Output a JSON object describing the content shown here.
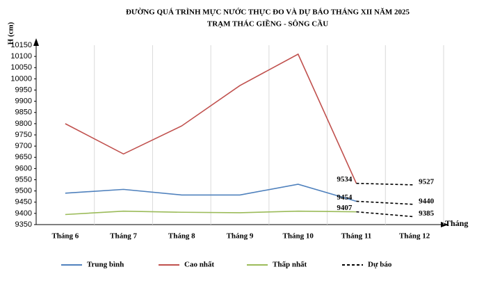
{
  "chart_data": {
    "type": "line",
    "title": "ĐƯỜNG QUÁ TRÌNH MỰC NƯỚC THỰC ĐO VÀ DỰ BÁO THÁNG XII NĂM 2025",
    "subtitle": "TRẠM THÁC GIỀNG  - SÔNG CẦU",
    "y_label": "H (cm)",
    "x_label": "Tháng",
    "categories": [
      "Tháng 6",
      "Tháng 7",
      "Tháng 8",
      "Tháng 9",
      "Tháng 10",
      "Tháng 11",
      "Tháng 12"
    ],
    "series": [
      {
        "name": "Trung bình",
        "color": "#4f81bd",
        "values": [
          9490,
          9507,
          9482,
          9482,
          9530,
          9454,
          null
        ]
      },
      {
        "name": "Cao nhất",
        "color": "#c0504d",
        "values": [
          9800,
          9665,
          9790,
          9970,
          10110,
          9534,
          null
        ]
      },
      {
        "name": "Thấp nhất",
        "color": "#9bbb59",
        "values": [
          9395,
          9410,
          9405,
          9403,
          9410,
          9407,
          null
        ]
      }
    ],
    "forecast": {
      "name": "Dự báo",
      "color": "#000000",
      "lines": [
        [
          null,
          null,
          null,
          null,
          null,
          9534,
          9527
        ],
        [
          null,
          null,
          null,
          null,
          null,
          9454,
          9440
        ],
        [
          null,
          null,
          null,
          null,
          null,
          9407,
          9385
        ]
      ]
    },
    "ylim": [
      9350,
      10150
    ],
    "yticks": [
      9350,
      9400,
      9450,
      9500,
      9550,
      9600,
      9650,
      9700,
      9750,
      9800,
      9850,
      9900,
      9950,
      10000,
      10050,
      10100,
      10150
    ],
    "grid": "vertical"
  }
}
